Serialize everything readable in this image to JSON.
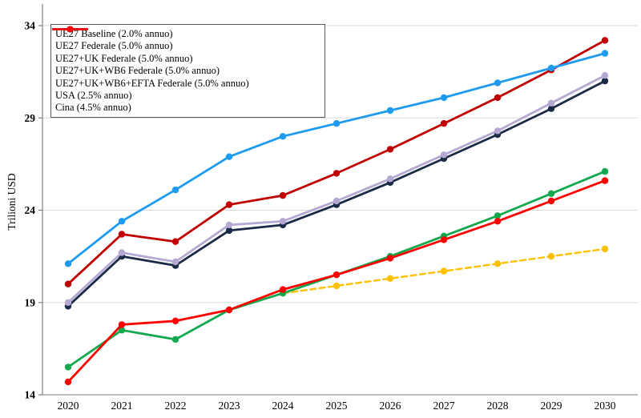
{
  "chart_data": {
    "type": "line",
    "title": "",
    "xlabel": "",
    "ylabel": "Trilioni USD",
    "x": [
      2020,
      2021,
      2022,
      2023,
      2024,
      2025,
      2026,
      2027,
      2028,
      2029,
      2030
    ],
    "ylim": [
      14,
      34
    ],
    "yticks": [
      14,
      19,
      24,
      29,
      34
    ],
    "grid": true,
    "legend_position": "top-left",
    "series": [
      {
        "name": "UE27 Baseline (2.0% annuo)",
        "color": "#FFC000",
        "dash": true,
        "values": [
          null,
          null,
          null,
          null,
          19.5,
          19.9,
          20.3,
          20.7,
          21.1,
          21.5,
          21.9
        ]
      },
      {
        "name": "UE27 Federale (5.0% annuo)",
        "color": "#12A84D",
        "dash": false,
        "values": [
          15.5,
          17.5,
          17.0,
          18.6,
          19.5,
          20.5,
          21.5,
          22.6,
          23.7,
          24.9,
          26.1
        ]
      },
      {
        "name": "UE27+UK Federale (5.0% annuo)",
        "color": "#1B2A47",
        "dash": false,
        "values": [
          18.8,
          21.5,
          21.0,
          22.9,
          23.2,
          24.3,
          25.5,
          26.8,
          28.1,
          29.5,
          31.0
        ]
      },
      {
        "name": "UE27+UK+WB6 Federale (5.0% annuo)",
        "color": "#B5A8D2",
        "dash": false,
        "values": [
          19.0,
          21.7,
          21.2,
          23.2,
          23.4,
          24.5,
          25.7,
          27.0,
          28.3,
          29.8,
          31.3
        ]
      },
      {
        "name": "UE27+UK+WB6+EFTA Federale (5.0% annuo)",
        "color": "#C00000",
        "dash": false,
        "values": [
          20.0,
          22.7,
          22.3,
          24.3,
          24.8,
          26.0,
          27.3,
          28.7,
          30.1,
          31.6,
          33.2
        ]
      },
      {
        "name": "USA (2.5% annuo)",
        "color": "#1E9BF0",
        "dash": false,
        "values": [
          21.1,
          23.4,
          25.1,
          26.9,
          28.0,
          28.7,
          29.4,
          30.1,
          30.9,
          31.7,
          32.5
        ]
      },
      {
        "name": "Cina (4.5% annuo)",
        "color": "#FF0000",
        "dash": false,
        "values": [
          14.7,
          17.8,
          18.0,
          18.6,
          19.7,
          20.5,
          21.4,
          22.4,
          23.4,
          24.5,
          25.6
        ]
      }
    ],
    "colors": {
      "gridline": "#D9D9D9",
      "axis": "#808080",
      "tick_label": "#000000"
    }
  }
}
